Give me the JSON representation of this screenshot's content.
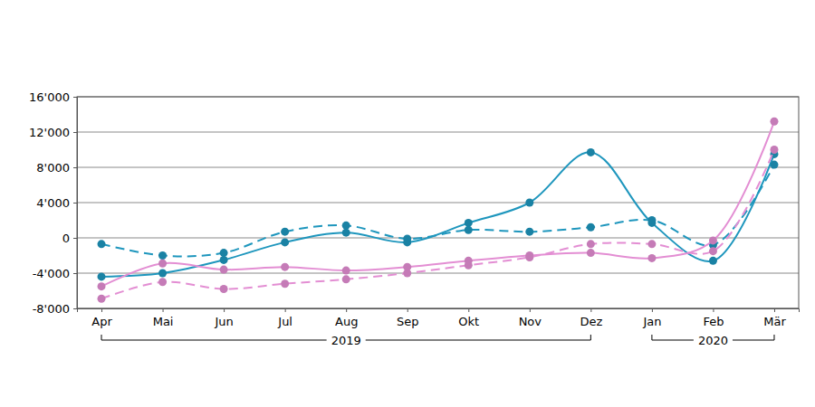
{
  "chart_data": {
    "type": "line",
    "categories": [
      "Apr",
      "Mai",
      "Jun",
      "Jul",
      "Aug",
      "Sep",
      "Okt",
      "Nov",
      "Dez",
      "Jan",
      "Feb",
      "Mär"
    ],
    "category_groups": [
      {
        "label": "2019",
        "start": "Apr",
        "end": "Dez"
      },
      {
        "label": "2020",
        "start": "Jan",
        "end": "Mär"
      }
    ],
    "series": [
      {
        "color": "#1e96bd",
        "line_style": "solid",
        "marker": "circle",
        "values": [
          -4400,
          -4000,
          -2500,
          -500,
          600,
          -500,
          1700,
          4000,
          9700,
          1700,
          -2600,
          9500
        ]
      },
      {
        "color": "#1e96bd",
        "line_style": "dashed",
        "marker": "circle",
        "values": [
          -700,
          -2000,
          -1700,
          700,
          1400,
          -100,
          900,
          700,
          1200,
          2000,
          -800,
          8300
        ]
      },
      {
        "color": "#e38ed3",
        "line_style": "solid",
        "marker": "circle",
        "values": [
          -5500,
          -2900,
          -3600,
          -3300,
          -3700,
          -3300,
          -2600,
          -2000,
          -1700,
          -2300,
          -300,
          13200
        ]
      },
      {
        "color": "#e38ed3",
        "line_style": "dashed",
        "marker": "circle",
        "values": [
          -6900,
          -5000,
          -5800,
          -5200,
          -4700,
          -4000,
          -3100,
          -2200,
          -700,
          -700,
          -1500,
          10000
        ]
      }
    ],
    "ylim": [
      -8000,
      16000
    ],
    "yticks": [
      {
        "value": -8000,
        "label": "-8'000"
      },
      {
        "value": -4000,
        "label": "-4'000"
      },
      0,
      {
        "value": 4000,
        "label": "4'000"
      },
      {
        "value": 8000,
        "label": "8'000"
      },
      {
        "value": 12000,
        "label": "12'000"
      },
      {
        "value": 16000,
        "label": "16'000"
      }
    ],
    "grid": true
  }
}
